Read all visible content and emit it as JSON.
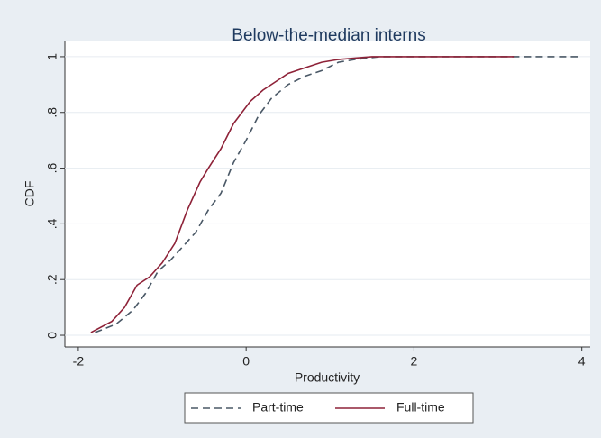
{
  "chart_data": {
    "type": "line",
    "title": "Below-the-median interns",
    "x_label": "Productivity",
    "y_label": "CDF",
    "xlim": [
      -2.16,
      4.1
    ],
    "ylim": [
      -0.042,
      1.058
    ],
    "xticks": [
      -2,
      0,
      2,
      4
    ],
    "yticks": [
      0,
      {
        "value": 0.2,
        "label": ".2"
      },
      {
        "value": 0.4,
        "label": ".4"
      },
      {
        "value": 0.6,
        "label": ".6"
      },
      {
        "value": 0.8,
        "label": ".8"
      },
      1
    ],
    "grid": true,
    "legend": "bottom",
    "series": [
      {
        "name": "Part-time",
        "color": "#4a5866",
        "dash": true,
        "x": [
          -1.8,
          -1.55,
          -1.35,
          -1.2,
          -1.05,
          -0.9,
          -0.75,
          -0.6,
          -0.45,
          -0.3,
          -0.15,
          0,
          0.15,
          0.3,
          0.5,
          0.7,
          0.9,
          1.1,
          1.3,
          1.6,
          4
        ],
        "values": [
          0.01,
          0.04,
          0.09,
          0.15,
          0.23,
          0.27,
          0.32,
          0.37,
          0.45,
          0.51,
          0.62,
          0.7,
          0.79,
          0.85,
          0.9,
          0.93,
          0.95,
          0.98,
          0.99,
          1,
          1
        ]
      },
      {
        "name": "Full-time",
        "color": "#8e2238",
        "dash": false,
        "x": [
          -1.85,
          -1.6,
          -1.45,
          -1.3,
          -1.15,
          -1.0,
          -0.85,
          -0.7,
          -0.55,
          -0.45,
          -0.3,
          -0.15,
          0.05,
          0.2,
          0.35,
          0.5,
          0.7,
          0.9,
          1.1,
          1.3,
          1.5,
          3.2
        ],
        "values": [
          0.01,
          0.05,
          0.1,
          0.18,
          0.21,
          0.26,
          0.33,
          0.45,
          0.55,
          0.6,
          0.67,
          0.76,
          0.84,
          0.88,
          0.91,
          0.94,
          0.96,
          0.98,
          0.99,
          0.995,
          1,
          1
        ]
      }
    ]
  }
}
